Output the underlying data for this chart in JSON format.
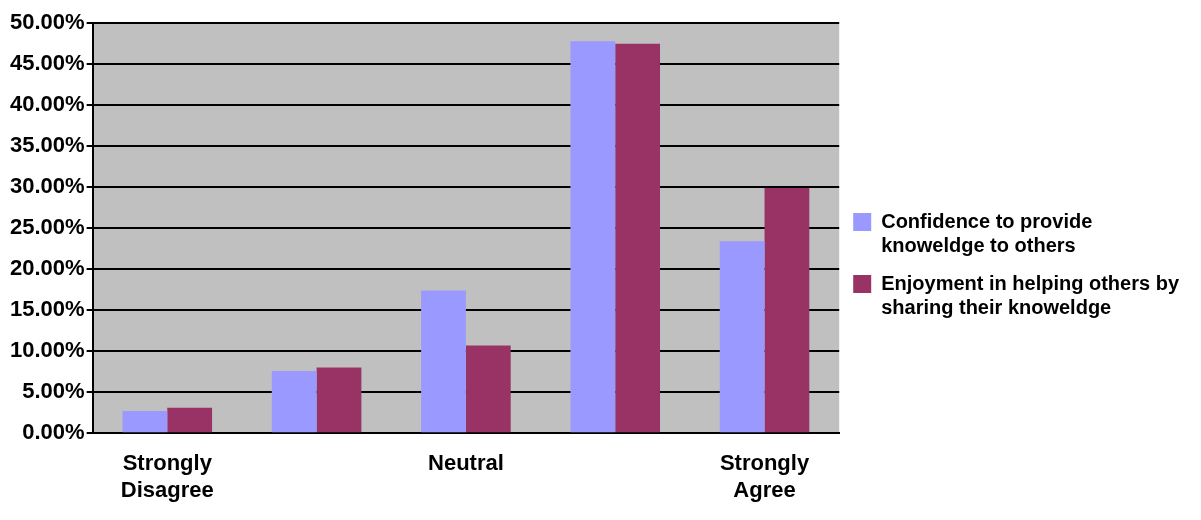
{
  "chart_data": {
    "type": "bar",
    "categories": [
      "Strongly Disagree",
      null,
      "Neutral",
      null,
      "Strongly Agree"
    ],
    "series": [
      {
        "name": "Confidence to provide knoweldge to others",
        "color": "#9999ff",
        "values": [
          2.7,
          7.6,
          17.4,
          47.8,
          23.4
        ]
      },
      {
        "name": "Enjoyment in helping others by sharing their knoweldge",
        "color": "#993366",
        "values": [
          3.1,
          8.0,
          10.7,
          47.5,
          29.9
        ]
      }
    ],
    "ylim": [
      0,
      50
    ],
    "yticks": [
      {
        "value": 0,
        "label": "0.00%"
      },
      {
        "value": 5,
        "label": "5.00%"
      },
      {
        "value": 10,
        "label": "10.00%"
      },
      {
        "value": 15,
        "label": "15.00%"
      },
      {
        "value": 20,
        "label": "20.00%"
      },
      {
        "value": 25,
        "label": "25.00%"
      },
      {
        "value": 30,
        "label": "30.00%"
      },
      {
        "value": 35,
        "label": "35.00%"
      },
      {
        "value": 40,
        "label": "40.00%"
      },
      {
        "value": 45,
        "label": "45.00%"
      },
      {
        "value": 50,
        "label": "50.00%"
      }
    ],
    "grid": "y",
    "legend": "right"
  }
}
